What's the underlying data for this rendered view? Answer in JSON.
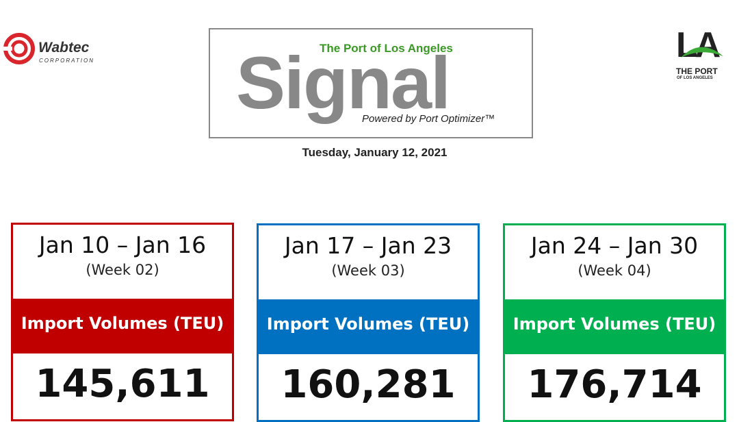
{
  "header": {
    "left_logo": {
      "name": "Wabtec",
      "subtitle": "CORPORATION"
    },
    "title_box": {
      "kicker": "The Port of Los Angeles",
      "title": "Signal",
      "powered_by": "Powered by Port Optimizer™"
    },
    "date": "Tuesday, January 12, 2021",
    "right_logo": {
      "mark": "LA",
      "line1": "THE PORT",
      "line2": "OF LOS ANGELES"
    }
  },
  "cards": [
    {
      "range": "Jan 10 – Jan 16",
      "week": "(Week 02)",
      "label": "Import Volumes (TEU)",
      "value": "145,611",
      "color": "#c00000"
    },
    {
      "range": "Jan 17 – Jan 23",
      "week": "(Week 03)",
      "label": "Import Volumes (TEU)",
      "value": "160,281",
      "color": "#0070c0"
    },
    {
      "range": "Jan 24 – Jan 30",
      "week": "(Week 04)",
      "label": "Import Volumes (TEU)",
      "value": "176,714",
      "color": "#00b050"
    }
  ]
}
